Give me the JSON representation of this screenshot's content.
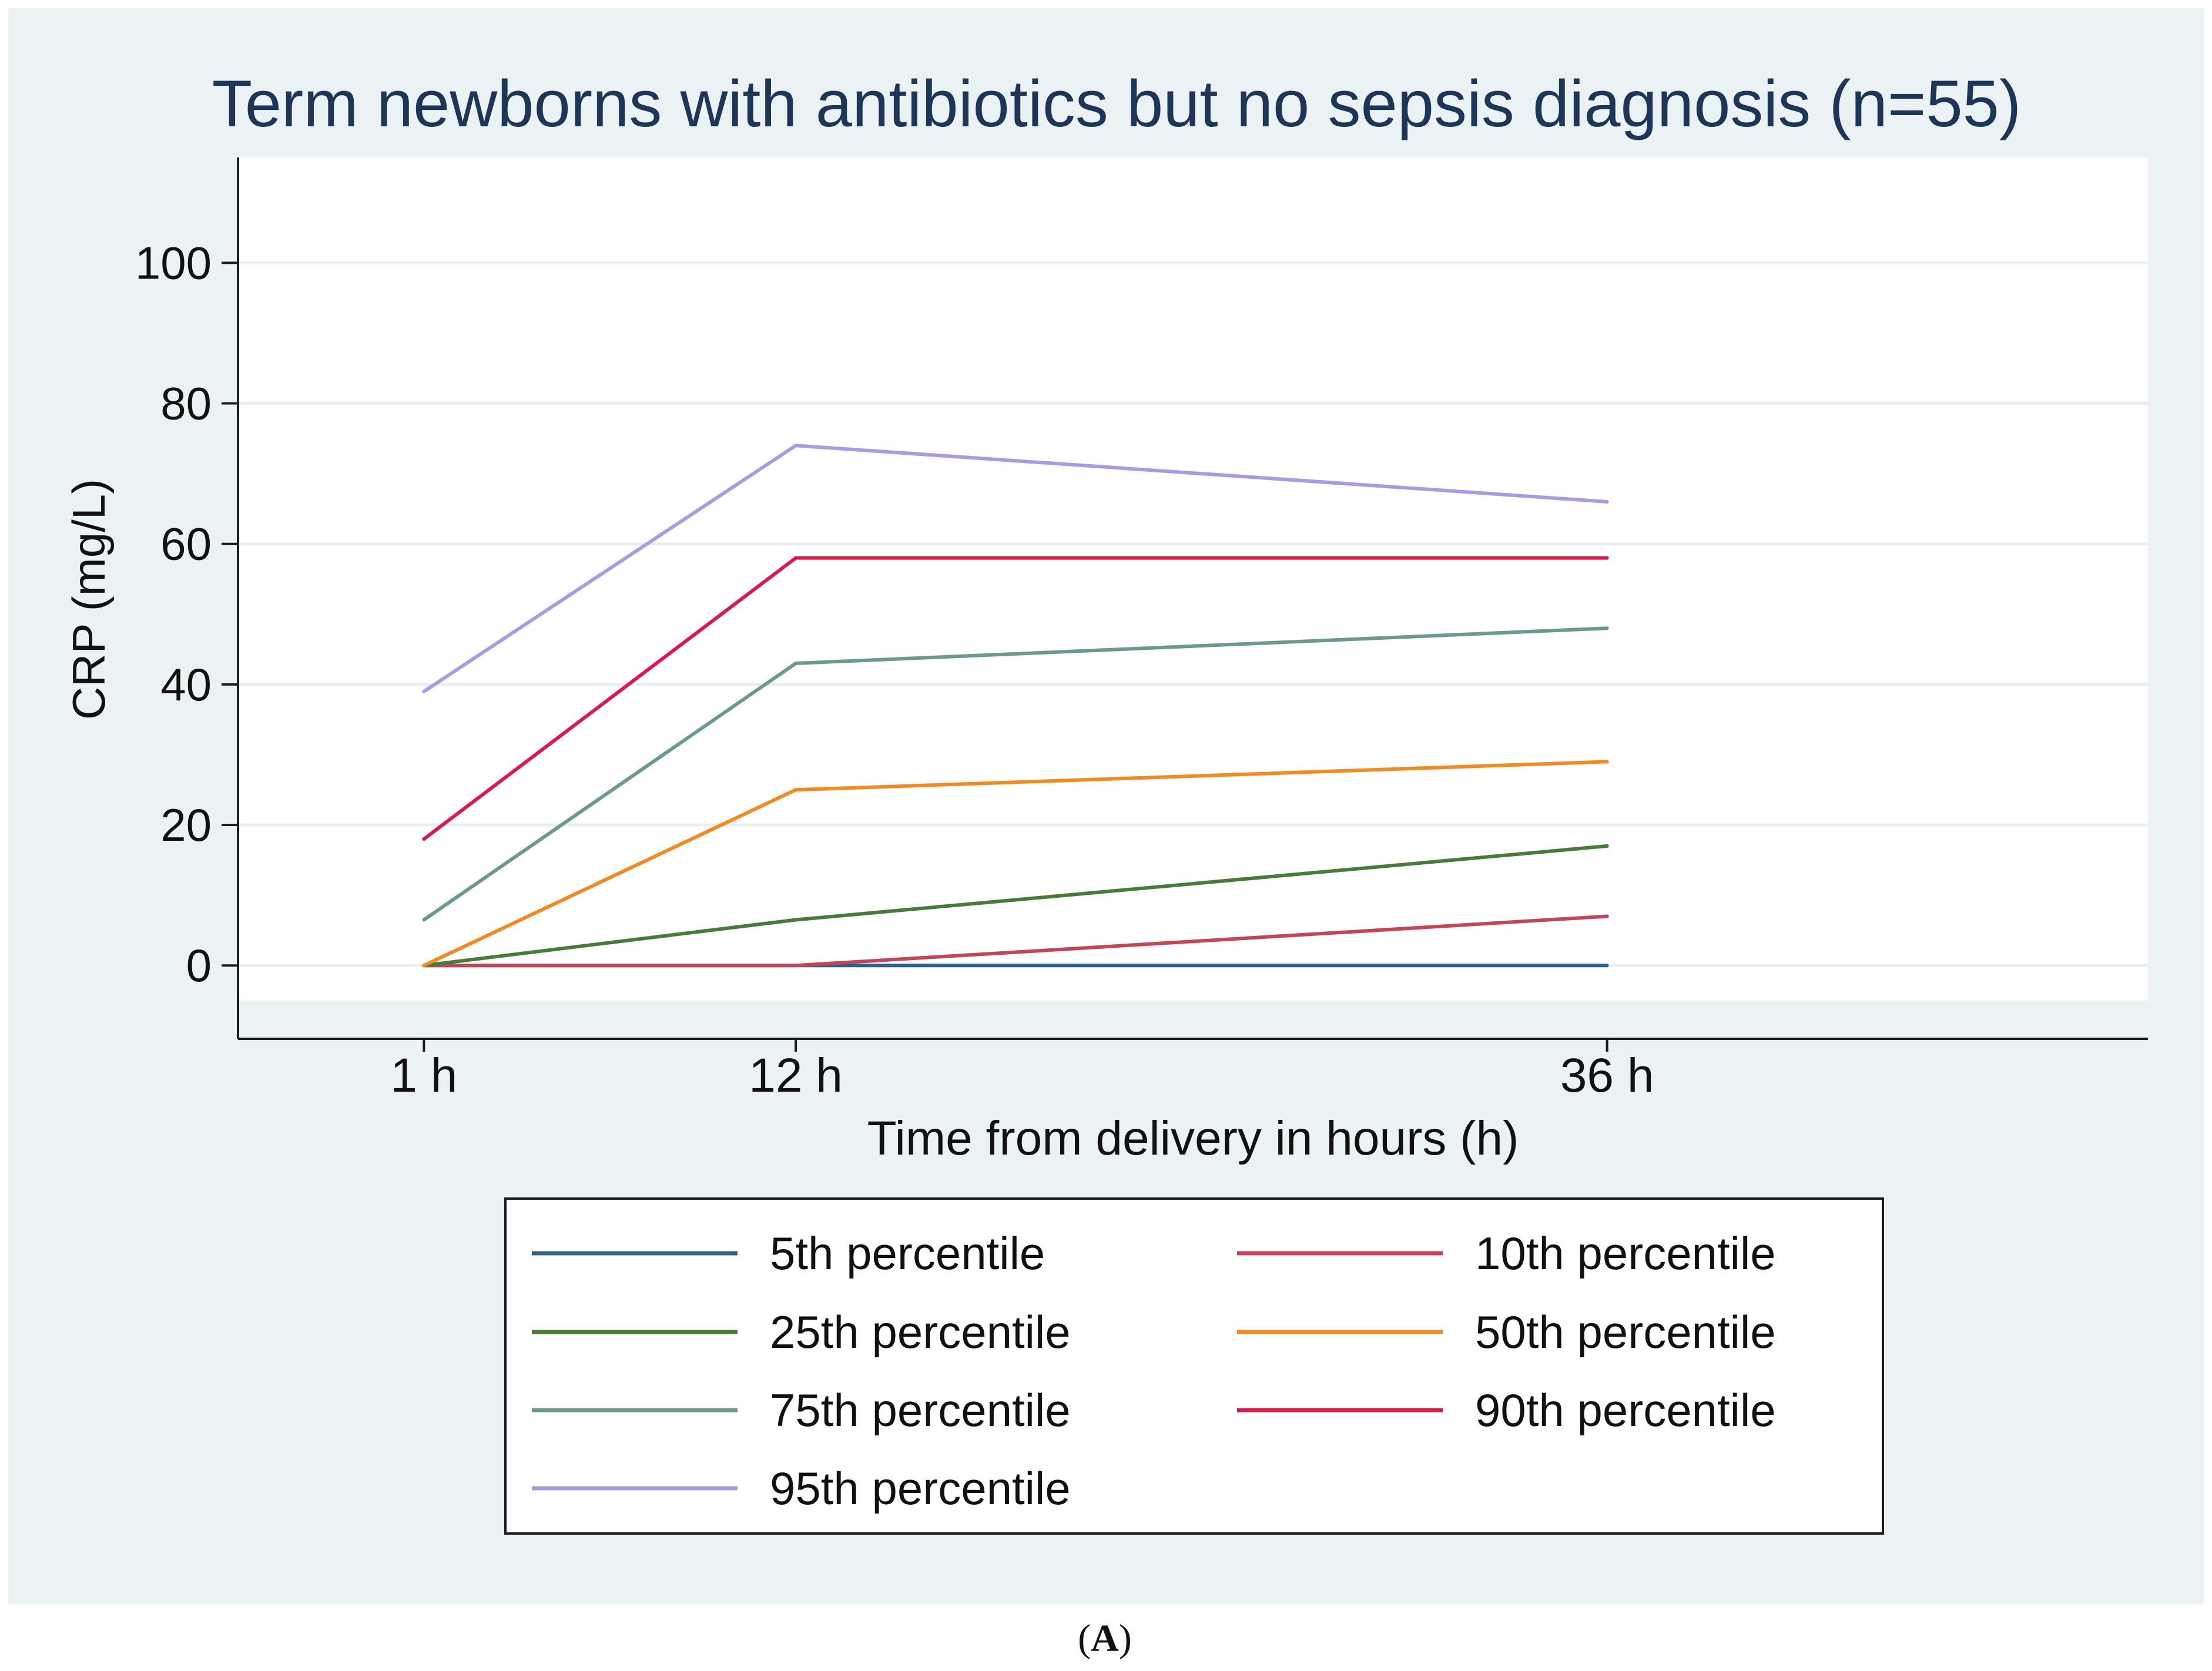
{
  "figure_label": "A",
  "colors": {
    "figure_background": "#eaf2f3",
    "plot_background": "#ffffff",
    "gridline": "#e9eef0",
    "axis": "#1b1b1b",
    "title": "#1d3557",
    "text": "#111111"
  },
  "chart_data": {
    "type": "line",
    "title": "Term newborns with antibiotics but no sepsis diagnosis (n=55)",
    "xlabel": "Time from delivery in hours (h)",
    "ylabel": "CRP (mg/L)",
    "x": [
      1,
      12,
      36
    ],
    "x_tick_labels": [
      "1 h",
      "12 h",
      "36 h"
    ],
    "y_ticks": [
      0,
      20,
      40,
      60,
      80,
      100
    ],
    "ylim": [
      -5,
      115
    ],
    "xlim": [
      -4.5,
      52
    ],
    "grid": true,
    "legend_position": "bottom",
    "series": [
      {
        "name": "5th percentile",
        "color": "#2f5f8a",
        "values": [
          0,
          0,
          0
        ]
      },
      {
        "name": "10th percentile",
        "color": "#c2465a",
        "values": [
          0,
          0,
          7
        ]
      },
      {
        "name": "25th percentile",
        "color": "#4a7a3a",
        "values": [
          0,
          6.5,
          17
        ]
      },
      {
        "name": "50th percentile",
        "color": "#f08a24",
        "values": [
          0,
          25,
          29
        ]
      },
      {
        "name": "75th percentile",
        "color": "#6b9a8c",
        "values": [
          6.5,
          43,
          48
        ]
      },
      {
        "name": "90th percentile",
        "color": "#d81b4f",
        "values": [
          18,
          58,
          58
        ]
      },
      {
        "name": "95th percentile",
        "color": "#a99be0",
        "values": [
          39,
          74,
          66
        ]
      }
    ]
  }
}
